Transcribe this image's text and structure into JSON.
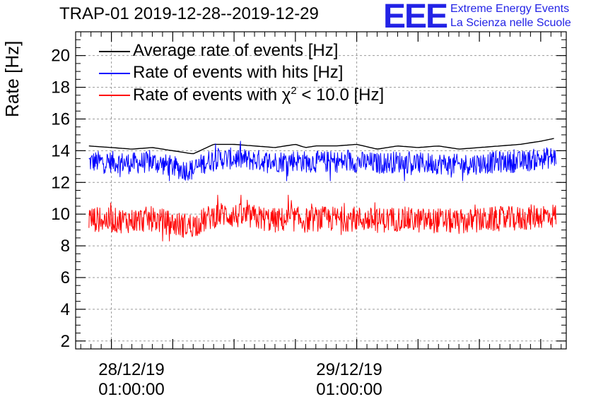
{
  "colors": {
    "avg": "#000000",
    "hits": "#0000ff",
    "chi2": "#ff0000",
    "logo": "#2323e6"
  },
  "chart_data": {
    "type": "line",
    "title": "TRAP-01 2019-12-28--2019-12-29",
    "ylabel": "Rate [Hz]",
    "xlabel": "",
    "ylim": [
      1.5,
      21.5
    ],
    "yticks": [
      2,
      4,
      6,
      8,
      10,
      12,
      14,
      16,
      18,
      20
    ],
    "ytick_labels": [
      "2",
      "4",
      "6",
      "8",
      "10",
      "12",
      "14",
      "16",
      "18",
      "20"
    ],
    "xlim_hours": [
      -3.5,
      44.5
    ],
    "xtick_hours": [
      0,
      24
    ],
    "xtick_labels": [
      {
        "date": "28/12/19",
        "time": "01:00:00"
      },
      {
        "date": "29/12/19",
        "time": "01:00:00"
      }
    ],
    "grid": true,
    "legend_position": "top-left",
    "series": [
      {
        "name": "Average rate of events [Hz]",
        "color_key": "avg",
        "x_hours": [
          -2.2,
          0,
          2,
          4,
          6,
          7,
          8,
          9,
          10,
          11,
          12,
          14,
          16,
          18,
          19,
          20,
          22,
          24,
          26,
          28,
          30,
          32,
          34,
          36,
          38,
          40,
          42,
          43.5
        ],
        "values": [
          14.3,
          14.2,
          14.1,
          14.2,
          14.0,
          13.9,
          13.8,
          14.1,
          14.4,
          14.4,
          14.4,
          14.3,
          14.2,
          14.4,
          14.2,
          14.3,
          14.3,
          14.4,
          14.1,
          14.3,
          14.2,
          14.3,
          14.1,
          14.2,
          14.3,
          14.4,
          14.6,
          14.8
        ]
      },
      {
        "name": "Rate of events with hits [Hz]",
        "color_key": "hits",
        "x_hours": [
          -2.2,
          0,
          2,
          4,
          6,
          7,
          8,
          9,
          10,
          11,
          12,
          14,
          16,
          18,
          19,
          20,
          22,
          24,
          26,
          28,
          30,
          32,
          34,
          36,
          38,
          40,
          42,
          43.5
        ],
        "values": [
          13.3,
          13.3,
          13.2,
          13.3,
          13.0,
          12.8,
          12.8,
          13.2,
          13.5,
          13.5,
          13.5,
          13.4,
          13.3,
          13.4,
          13.3,
          13.3,
          13.3,
          13.3,
          13.2,
          13.3,
          13.2,
          13.2,
          13.1,
          13.2,
          13.3,
          13.3,
          13.5,
          13.6
        ],
        "band": [
          12.1,
          14.6
        ]
      },
      {
        "name": "Rate of events with χ² < 10.0 [Hz]",
        "color_key": "chi2",
        "x_hours": [
          -2.2,
          0,
          2,
          4,
          6,
          7,
          8,
          9,
          10,
          11,
          12,
          14,
          16,
          18,
          19,
          20,
          22,
          24,
          26,
          28,
          30,
          32,
          34,
          36,
          38,
          40,
          42,
          43.5
        ],
        "values": [
          9.7,
          9.6,
          9.6,
          9.7,
          9.4,
          9.3,
          9.3,
          9.6,
          9.9,
          10.0,
          9.9,
          9.8,
          9.6,
          9.7,
          9.6,
          9.7,
          9.7,
          9.7,
          9.6,
          9.7,
          9.6,
          9.6,
          9.5,
          9.6,
          9.7,
          9.7,
          9.9,
          9.9
        ],
        "band": [
          8.3,
          11.2
        ]
      }
    ]
  },
  "legend": {
    "items": [
      {
        "label": "Average rate of events [Hz]",
        "color_key": "avg"
      },
      {
        "label": "Rate of events with hits [Hz]",
        "color_key": "hits"
      },
      {
        "label_prefix": "Rate of events with ",
        "label_symbol": "χ",
        "label_sup": "2",
        "label_suffix": " < 10.0 [Hz]",
        "color_key": "chi2"
      }
    ]
  },
  "logo": {
    "mark": "EEE",
    "line1": "Extreme Energy Events",
    "line2": "La Scienza nelle Scuole"
  }
}
